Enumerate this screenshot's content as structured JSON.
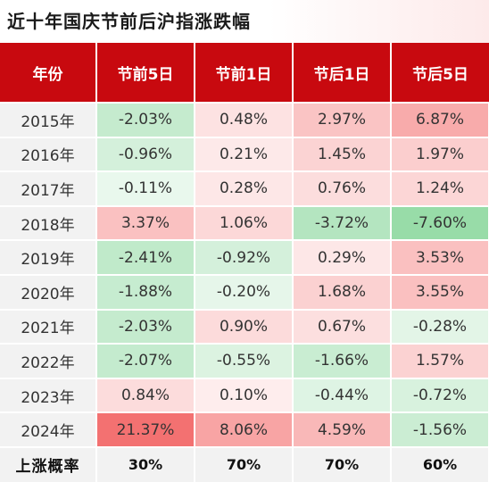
{
  "title": "近十年国庆节前后沪指涨跌幅",
  "chart_data": {
    "type": "table",
    "columns": [
      "年份",
      "节前5日",
      "节前1日",
      "节后1日",
      "节后5日"
    ],
    "rows": [
      {
        "year": "2015年",
        "values": [
          "-2.03%",
          "0.48%",
          "2.97%",
          "6.87%"
        ],
        "nums": [
          -2.03,
          0.48,
          2.97,
          6.87
        ]
      },
      {
        "year": "2016年",
        "values": [
          "-0.96%",
          "0.21%",
          "1.45%",
          "1.97%"
        ],
        "nums": [
          -0.96,
          0.21,
          1.45,
          1.97
        ]
      },
      {
        "year": "2017年",
        "values": [
          "-0.11%",
          "0.28%",
          "0.76%",
          "1.24%"
        ],
        "nums": [
          -0.11,
          0.28,
          0.76,
          1.24
        ]
      },
      {
        "year": "2018年",
        "values": [
          "3.37%",
          "1.06%",
          "-3.72%",
          "-7.60%"
        ],
        "nums": [
          3.37,
          1.06,
          -3.72,
          -7.6
        ]
      },
      {
        "year": "2019年",
        "values": [
          "-2.41%",
          "-0.92%",
          "0.29%",
          "3.53%"
        ],
        "nums": [
          -2.41,
          -0.92,
          0.29,
          3.53
        ]
      },
      {
        "year": "2020年",
        "values": [
          "-1.88%",
          "-0.20%",
          "1.68%",
          "3.55%"
        ],
        "nums": [
          -1.88,
          -0.2,
          1.68,
          3.55
        ]
      },
      {
        "year": "2021年",
        "values": [
          "-2.03%",
          "0.90%",
          "0.67%",
          "-0.28%"
        ],
        "nums": [
          -2.03,
          0.9,
          0.67,
          -0.28
        ]
      },
      {
        "year": "2022年",
        "values": [
          "-2.07%",
          "-0.55%",
          "-1.66%",
          "1.57%"
        ],
        "nums": [
          -2.07,
          -0.55,
          -1.66,
          1.57
        ]
      },
      {
        "year": "2023年",
        "values": [
          "0.84%",
          "0.10%",
          "-0.44%",
          "-0.72%"
        ],
        "nums": [
          0.84,
          0.1,
          -0.44,
          -0.72
        ]
      },
      {
        "year": "2024年",
        "values": [
          "21.37%",
          "8.06%",
          "4.59%",
          "-1.56%"
        ],
        "nums": [
          21.37,
          8.06,
          4.59,
          -1.56
        ]
      }
    ],
    "summary": {
      "label": "上涨概率",
      "values": [
        "30%",
        "70%",
        "70%",
        "60%"
      ]
    },
    "colors": {
      "header_bg": "#c8090f",
      "header_text": "#ffffff",
      "positive": "#f36b6b",
      "negative": "#52c46e",
      "label_bg": "#f2f2f2"
    }
  }
}
